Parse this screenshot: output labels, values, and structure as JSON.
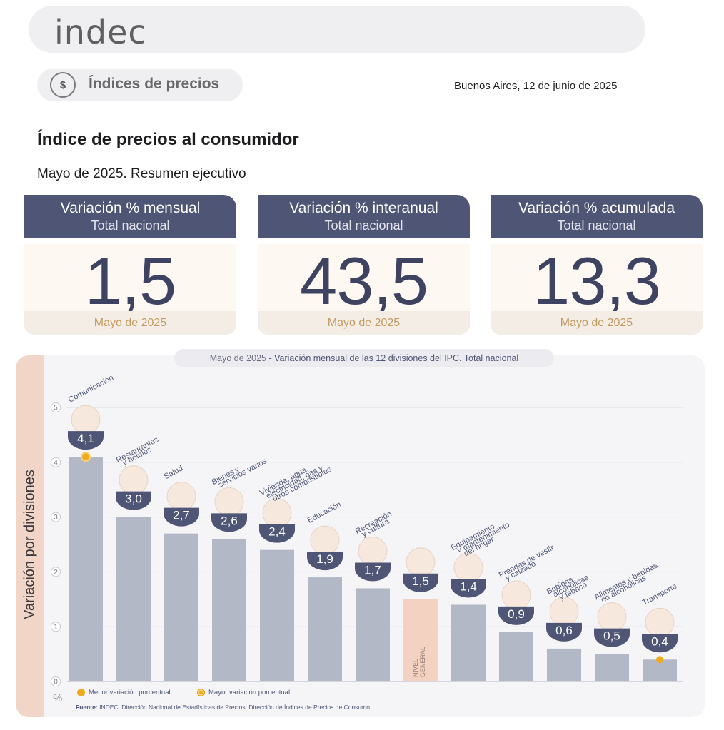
{
  "brand": {
    "logo_text": "indec"
  },
  "section": {
    "label": "Índices de precios",
    "icon": "price-tag-icon"
  },
  "place_date": "Buenos Aires, 12 de junio de 2025",
  "title": "Índice de precios al consumidor",
  "subtitle": "Mayo de 2025. Resumen ejecutivo",
  "kpis": [
    {
      "label": "Variación % mensual",
      "scope": "Total nacional",
      "value": "1,5",
      "period": "Mayo de 2025"
    },
    {
      "label": "Variación % interanual",
      "scope": "Total nacional",
      "value": "43,5",
      "period": "Mayo de 2025"
    },
    {
      "label": "Variación % acumulada",
      "scope": "Total nacional",
      "value": "13,3",
      "period": "Mayo de 2025"
    }
  ],
  "chart_tab": {
    "period": "Mayo de 2025",
    "rest": " - Variación mensual de las 12 divisiones del IPC. Total nacional"
  },
  "chart_data": {
    "type": "bar",
    "ylabel": "Variación por divisiones",
    "yunit": "%",
    "ylim": [
      0,
      5
    ],
    "yticks": [
      0,
      1,
      2,
      3,
      4,
      5
    ],
    "grid": true,
    "categories": [
      "Comunicación",
      "Restaurantes y hoteles",
      "Salud",
      "Bienes y servicios varios",
      "Vivienda, agua, electricidad, gas y otros combustibles",
      "Educación",
      "Recreación y cultura",
      "NIVEL GENERAL",
      "Equipamiento y mantenimiento del hogar",
      "Prendas de vestir y calzado",
      "Bebidas alcohólicas y tabaco",
      "Alimentos y bebidas no alcohólicas",
      "Transporte"
    ],
    "category_lines": [
      [
        "Comunicación"
      ],
      [
        "Restaurantes",
        "y hoteles"
      ],
      [
        "Salud"
      ],
      [
        "Bienes y",
        "servicios varios"
      ],
      [
        "Vivienda, agua,",
        "electricidad, gas y",
        "otros combustibles"
      ],
      [
        "Educación"
      ],
      [
        "Recreación",
        "y cultura"
      ],
      [],
      [
        "Equipamiento",
        "y mantenimiento",
        "del hogar"
      ],
      [
        "Prendas de vestir",
        "y calzado"
      ],
      [
        "Bebidas",
        "alcohólicas",
        "y tabaco"
      ],
      [
        "Alimentos y bebidas",
        "no alcohólicas"
      ],
      [
        "Transporte"
      ]
    ],
    "inbar_label": [
      "NIVEL",
      "GENERAL"
    ],
    "values": [
      4.1,
      3.0,
      2.7,
      2.6,
      2.4,
      1.9,
      1.7,
      1.5,
      1.4,
      0.9,
      0.6,
      0.5,
      0.4
    ],
    "value_labels": [
      "4,1",
      "3,0",
      "2,7",
      "2,6",
      "2,4",
      "1,9",
      "1,7",
      "1,5",
      "1,4",
      "0,9",
      "0,6",
      "0,5",
      "0,4"
    ],
    "icons": [
      "smartphone-icon",
      "cutlery-icon",
      "first-aid-icon",
      "scissors-comb-icon",
      "lightbulb-icon",
      "book-icon",
      "umbrella-sun-icon",
      "shopping-basket-icon",
      "washing-machine-icon",
      "tshirt-icon",
      "bottle-glass-icon",
      "fruit-basket-icon",
      "sube-bus-icon"
    ],
    "highlight_index": 7,
    "markers": [
      {
        "index": 0,
        "kind": "max"
      },
      {
        "index": 12,
        "kind": "min"
      }
    ],
    "colors": {
      "bar": "#b3b8c7",
      "highlight": "#f3d2c2",
      "badge": "#4f5575",
      "marker": "#f0ab1d",
      "label": "#4f5575"
    }
  },
  "legend": [
    {
      "label": "Menor variación porcentual",
      "kind": "min"
    },
    {
      "label": "Mayor variación porcentual",
      "kind": "max"
    }
  ],
  "source": {
    "label": "Fuente:",
    "text": " INDEC, Dirección Nacional de Estadísticas de Precios. Dirección de Índices de Precios de Consumo."
  }
}
